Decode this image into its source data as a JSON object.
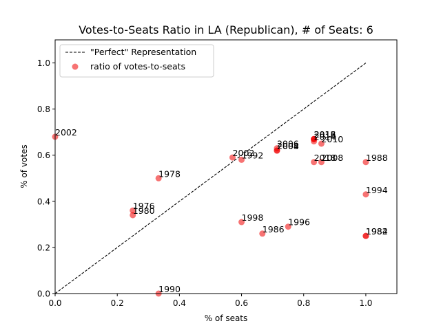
{
  "chart_data": {
    "type": "scatter",
    "title": "Votes-to-Seats Ratio in LA (Republican), # of Seats: 6",
    "xlabel": "% of seats",
    "ylabel": "% of votes",
    "xlim": [
      0,
      1.1
    ],
    "ylim": [
      0,
      1.1
    ],
    "xticks": [
      "0.0",
      "0.2",
      "0.4",
      "0.6",
      "0.8",
      "1.0"
    ],
    "yticks": [
      "0.0",
      "0.2",
      "0.4",
      "0.6",
      "0.8",
      "1.0"
    ],
    "grid": false,
    "legend_position": "top-left",
    "reference_line": {
      "name": "\"Perfect\" Representation",
      "x": [
        0,
        1
      ],
      "y": [
        0,
        1
      ],
      "style": "dashed",
      "color": "#000000"
    },
    "series": [
      {
        "name": "ratio of votes-to-seats",
        "color": "#f00000",
        "points": [
          {
            "label": "1976",
            "x": 0.25,
            "y": 0.36
          },
          {
            "label": "1978",
            "x": 0.333,
            "y": 0.5
          },
          {
            "label": "1980",
            "x": 0.25,
            "y": 0.34
          },
          {
            "label": "1982",
            "x": 1.0,
            "y": 0.25
          },
          {
            "label": "1984",
            "x": 1.0,
            "y": 0.25
          },
          {
            "label": "1986",
            "x": 0.667,
            "y": 0.26
          },
          {
            "label": "1988",
            "x": 1.0,
            "y": 0.57
          },
          {
            "label": "1990",
            "x": 0.333,
            "y": 0.0
          },
          {
            "label": "1992",
            "x": 0.6,
            "y": 0.58
          },
          {
            "label": "1994",
            "x": 1.0,
            "y": 0.43
          },
          {
            "label": "1996",
            "x": 0.75,
            "y": 0.29
          },
          {
            "label": "1998",
            "x": 0.6,
            "y": 0.31
          },
          {
            "label": "2002",
            "x": 0.0,
            "y": 0.68
          },
          {
            "label": "2002",
            "x": 0.571,
            "y": 0.59
          },
          {
            "label": "2004",
            "x": 0.714,
            "y": 0.62
          },
          {
            "label": "2006",
            "x": 0.714,
            "y": 0.63
          },
          {
            "label": "2008",
            "x": 0.714,
            "y": 0.62
          },
          {
            "label": "2008",
            "x": 0.857,
            "y": 0.57
          },
          {
            "label": "2010",
            "x": 0.857,
            "y": 0.65
          },
          {
            "label": "2012",
            "x": 0.833,
            "y": 0.67
          },
          {
            "label": "2014",
            "x": 0.833,
            "y": 0.66
          },
          {
            "label": "2016",
            "x": 0.833,
            "y": 0.67
          },
          {
            "label": "2018",
            "x": 0.833,
            "y": 0.67
          },
          {
            "label": "2018",
            "x": 0.833,
            "y": 0.57
          }
        ]
      }
    ]
  }
}
